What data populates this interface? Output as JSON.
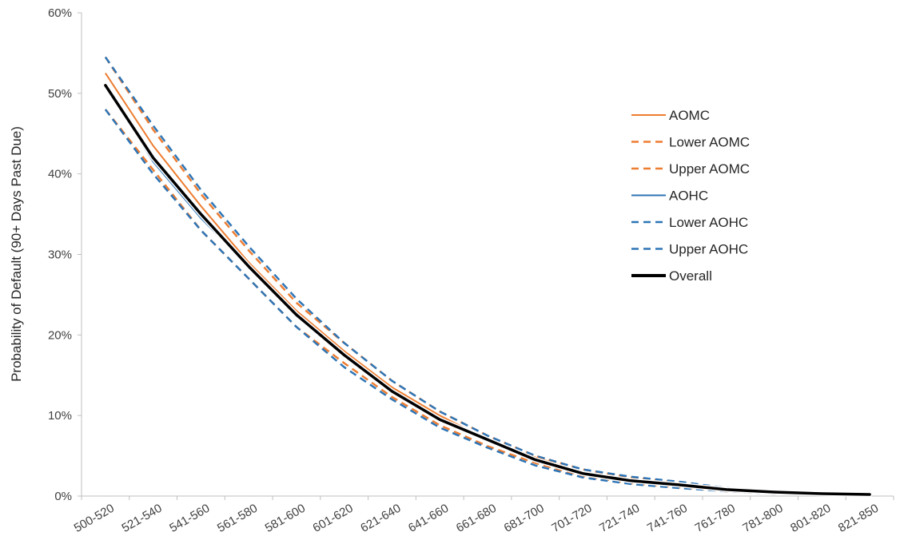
{
  "chart_data": {
    "type": "line",
    "title": "",
    "xlabel": "",
    "ylabel": "Probability of Default (90+ Days Past Due)",
    "ylim": [
      0,
      60
    ],
    "yticks": [
      "0%",
      "10%",
      "20%",
      "30%",
      "40%",
      "50%",
      "60%"
    ],
    "ytick_values": [
      0,
      10,
      20,
      30,
      40,
      50,
      60
    ],
    "grid": false,
    "legend_position": "right",
    "categories": [
      "500-520",
      "521-540",
      "541-560",
      "561-580",
      "581-600",
      "601-620",
      "621-640",
      "641-660",
      "661-680",
      "681-700",
      "701-720",
      "721-740",
      "741-760",
      "761-780",
      "781-800",
      "801-820",
      "821-850"
    ],
    "series": [
      {
        "name": "AOMC",
        "color": "#ED7D31",
        "style": "solid",
        "values": [
          52.5,
          43.5,
          36.0,
          29.0,
          23.0,
          18.0,
          13.5,
          10.0,
          7.0,
          4.8,
          3.0,
          2.0,
          1.5,
          0.8,
          0.5,
          0.3,
          0.2
        ]
      },
      {
        "name": "Lower AOMC",
        "color": "#ED7D31",
        "style": "dashed",
        "values": [
          48.0,
          40.5,
          33.0,
          27.0,
          21.0,
          16.5,
          12.3,
          8.8,
          6.2,
          4.1,
          2.5,
          1.6,
          1.1,
          0.6,
          0.3,
          0.2,
          0.1
        ]
      },
      {
        "name": "Upper AOMC",
        "color": "#ED7D31",
        "style": "dashed",
        "values": [
          54.5,
          45.5,
          37.5,
          30.5,
          24.0,
          19.0,
          14.3,
          10.5,
          7.5,
          5.0,
          3.3,
          2.3,
          1.7,
          0.9,
          0.6,
          0.4,
          0.3
        ]
      },
      {
        "name": "AOHC",
        "color": "#2E75B6",
        "style": "solid",
        "values": [
          51.0,
          41.5,
          34.5,
          28.5,
          22.5,
          17.5,
          13.0,
          9.5,
          7.0,
          4.5,
          2.8,
          2.0,
          1.5,
          0.8,
          0.5,
          0.3,
          0.2
        ]
      },
      {
        "name": "Lower AOHC",
        "color": "#2E75B6",
        "style": "dashed",
        "values": [
          48.0,
          40.0,
          33.0,
          27.0,
          21.0,
          16.0,
          12.0,
          8.5,
          6.0,
          3.8,
          2.3,
          1.5,
          1.0,
          0.6,
          0.3,
          0.2,
          0.1
        ]
      },
      {
        "name": "Upper AOHC",
        "color": "#2E75B6",
        "style": "dashed",
        "values": [
          54.5,
          46.0,
          38.0,
          31.0,
          24.5,
          19.0,
          14.3,
          10.5,
          7.5,
          5.0,
          3.3,
          2.4,
          1.8,
          1.0,
          0.6,
          0.4,
          0.3
        ]
      },
      {
        "name": "Overall",
        "color": "#000000",
        "style": "thick",
        "values": [
          51.0,
          42.0,
          35.0,
          28.5,
          22.5,
          17.5,
          13.0,
          9.5,
          7.0,
          4.5,
          2.8,
          1.9,
          1.4,
          0.8,
          0.5,
          0.3,
          0.2
        ]
      }
    ]
  }
}
